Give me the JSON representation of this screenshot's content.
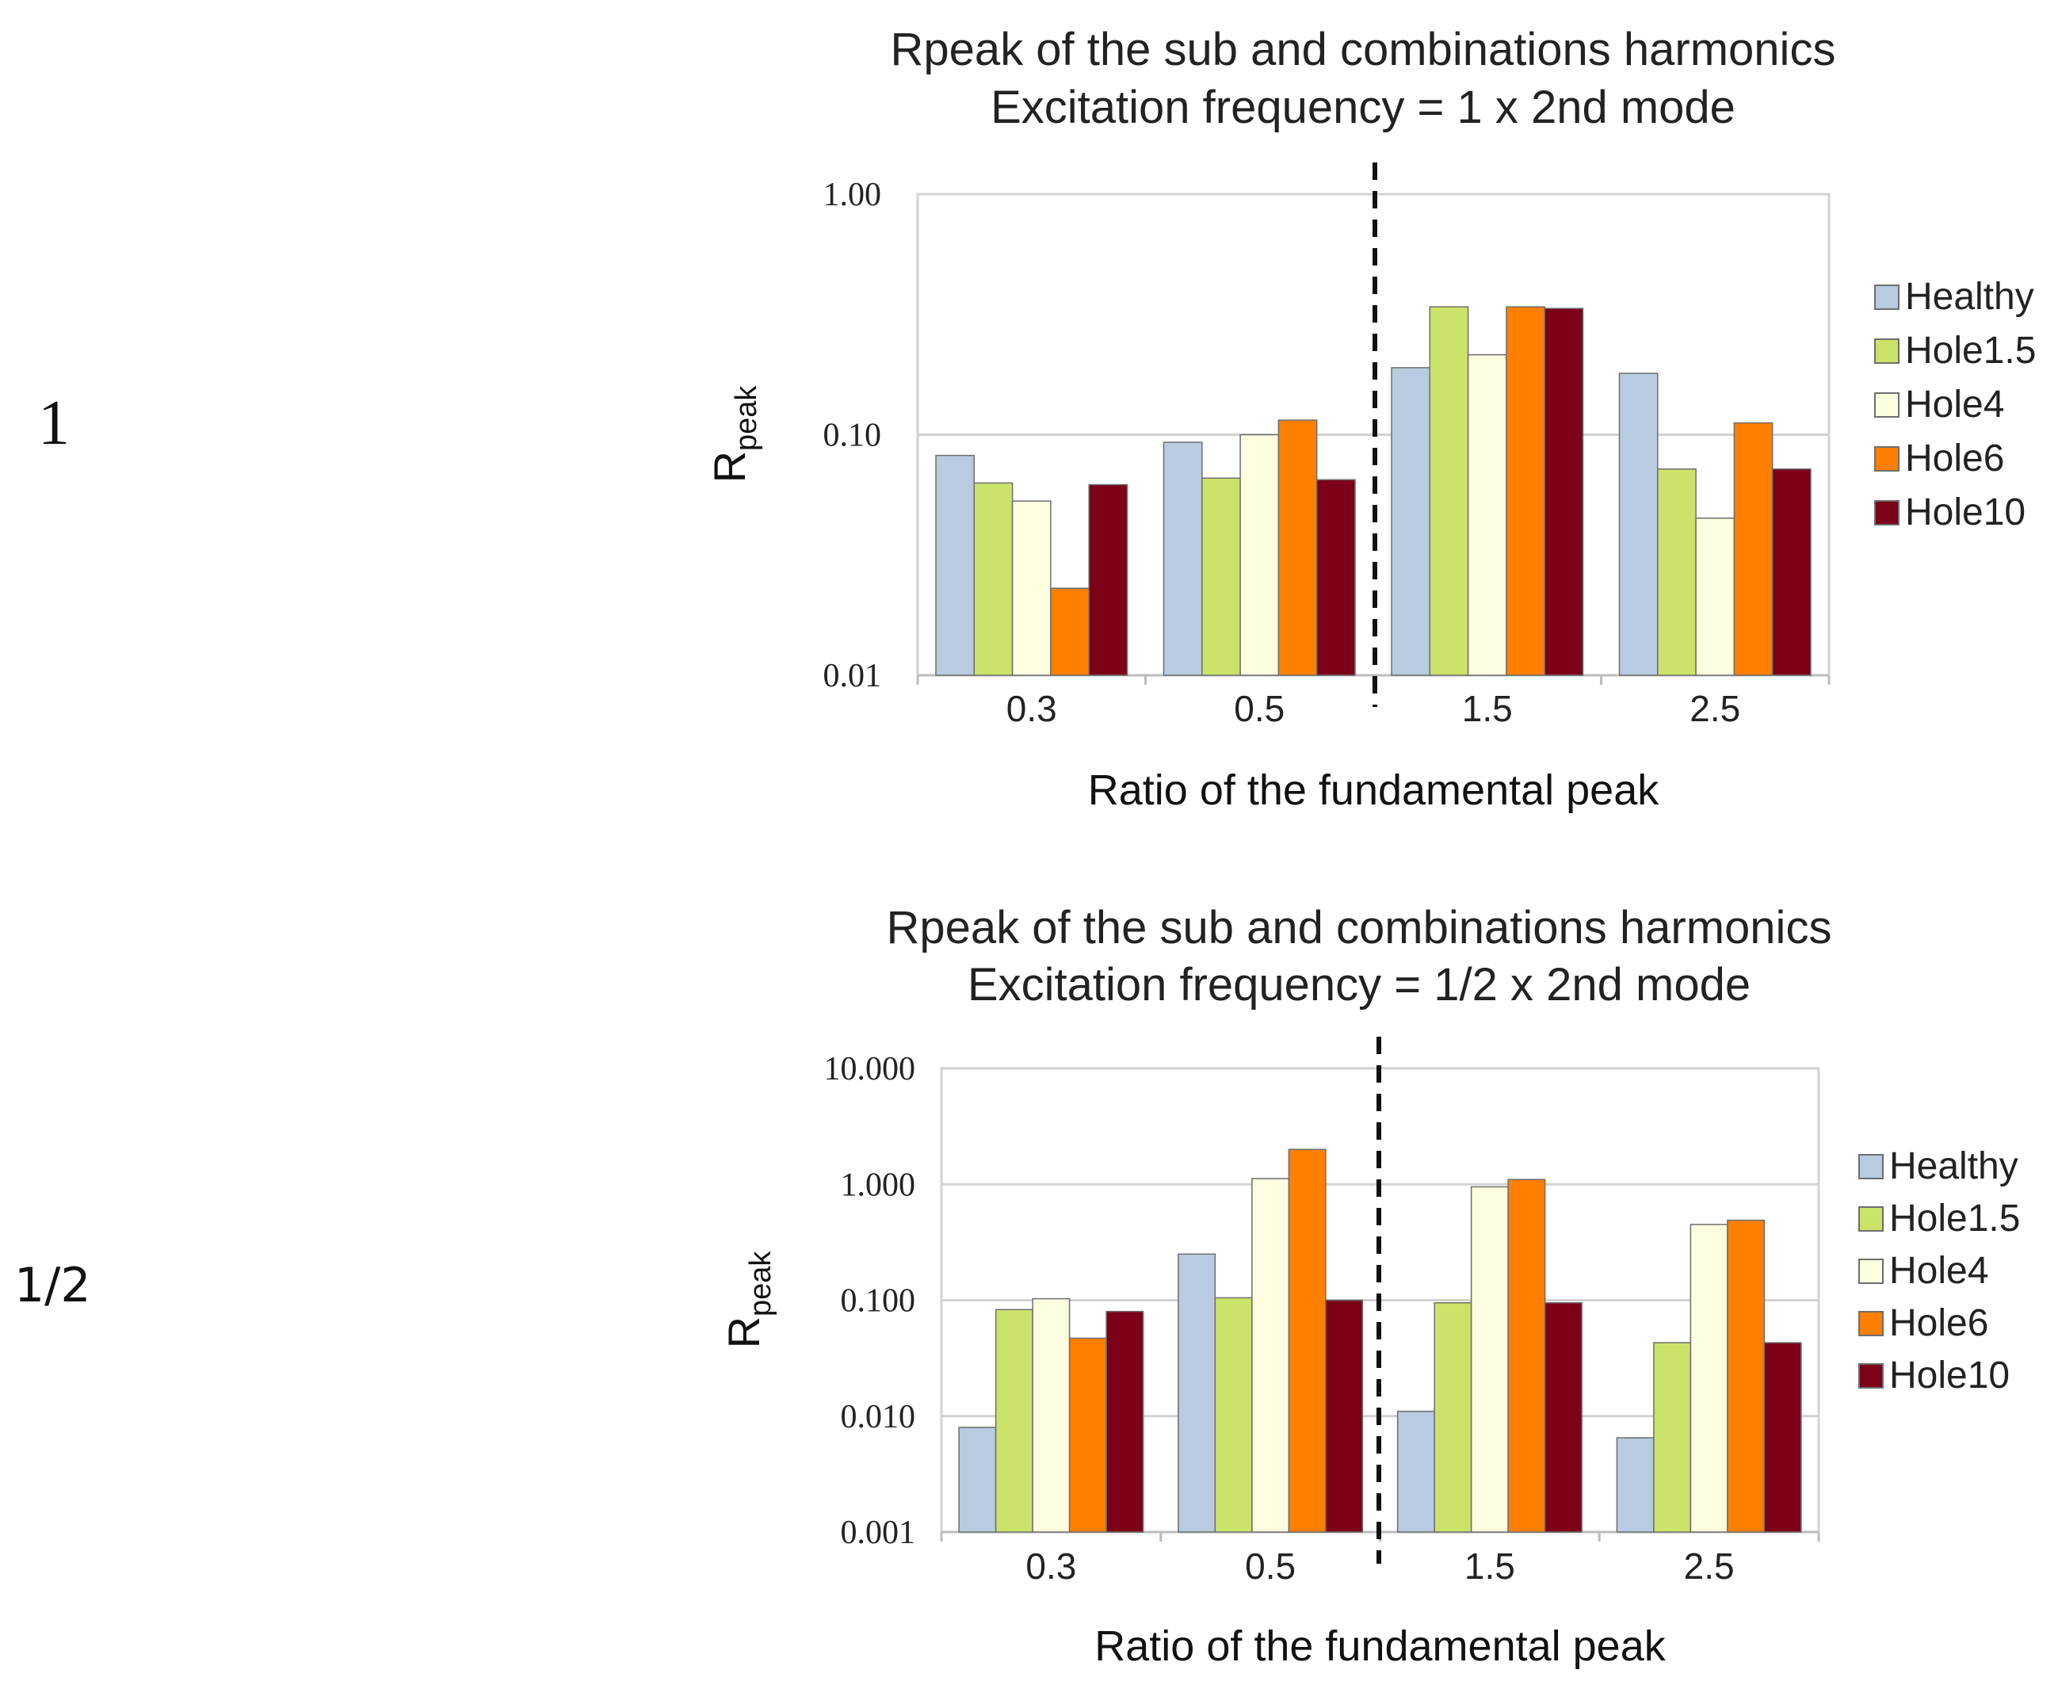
{
  "row_labels": [
    "1",
    "1/2"
  ],
  "chart_data": [
    {
      "type": "bar",
      "scale": "log",
      "title": [
        "Rpeak of the sub and combinations harmonics",
        "Excitation frequency = 1 x 2nd mode"
      ],
      "xlabel": "Ratio of the fundamental peak",
      "ylabel": "R",
      "ylabel_sub": "peak",
      "ylim": [
        0.01,
        1.0
      ],
      "yticks": [
        0.01,
        0.1,
        1.0
      ],
      "ytick_labels": [
        "0.01",
        "0.10",
        "1.00"
      ],
      "categories": [
        "0.3",
        "0.5",
        "1.5",
        "2.5"
      ],
      "divider_after_category": 1,
      "series": [
        {
          "name": "Healthy",
          "color": "#b8cbe0",
          "values": [
            0.082,
            0.093,
            0.19,
            0.18
          ]
        },
        {
          "name": "Hole1.5",
          "color": "#cce36a",
          "values": [
            0.063,
            0.066,
            0.34,
            0.072
          ]
        },
        {
          "name": "Hole4",
          "color": "#fdfde0",
          "values": [
            0.053,
            0.1,
            0.215,
            0.045
          ]
        },
        {
          "name": "Hole6",
          "color": "#ff7f00",
          "values": [
            0.023,
            0.115,
            0.34,
            0.112
          ]
        },
        {
          "name": "Hole10",
          "color": "#7b0018",
          "values": [
            0.062,
            0.065,
            0.335,
            0.072
          ]
        }
      ]
    },
    {
      "type": "bar",
      "scale": "log",
      "title": [
        "Rpeak of the sub and combinations harmonics",
        "Excitation frequency = 1/2 x 2nd mode"
      ],
      "xlabel": "Ratio of the fundamental peak",
      "ylabel": "R",
      "ylabel_sub": "peak",
      "ylim": [
        0.001,
        10.0
      ],
      "yticks": [
        0.001,
        0.01,
        0.1,
        1.0,
        10.0
      ],
      "ytick_labels": [
        "0.001",
        "0.010",
        "0.100",
        "1.000",
        "10.000"
      ],
      "categories": [
        "0.3",
        "0.5",
        "1.5",
        "2.5"
      ],
      "divider_after_category": 1,
      "series": [
        {
          "name": "Healthy",
          "color": "#b8cbe0",
          "values": [
            0.008,
            0.25,
            0.011,
            0.0065
          ]
        },
        {
          "name": "Hole1.5",
          "color": "#cce36a",
          "values": [
            0.083,
            0.105,
            0.095,
            0.043
          ]
        },
        {
          "name": "Hole4",
          "color": "#fdfde0",
          "values": [
            0.103,
            1.12,
            0.95,
            0.45
          ]
        },
        {
          "name": "Hole6",
          "color": "#ff7f00",
          "values": [
            0.047,
            2.0,
            1.1,
            0.49
          ]
        },
        {
          "name": "Hole10",
          "color": "#7b0018",
          "values": [
            0.08,
            0.1,
            0.095,
            0.043
          ]
        }
      ]
    }
  ]
}
